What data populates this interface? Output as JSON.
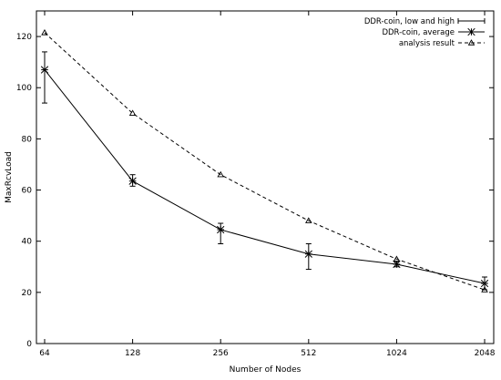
{
  "chart_data": {
    "type": "line",
    "xlabel": "Number of Nodes",
    "ylabel": "MaxRcvLoad",
    "x_scale": "log2",
    "x_ticks": [
      "64",
      "128",
      "256",
      "512",
      "1024",
      "2048"
    ],
    "xlim": [
      60,
      2200
    ],
    "ylim": [
      0,
      130
    ],
    "y_ticks": [
      "0",
      "20",
      "40",
      "60",
      "80",
      "100",
      "120"
    ],
    "grid": false,
    "legend_position": "top-right",
    "series": [
      {
        "name": "DDR-coin, low and high",
        "style": "errorbar",
        "x": [
          64,
          128,
          256,
          512,
          1024,
          2048
        ],
        "low": [
          94,
          61.5,
          39,
          29,
          30,
          21
        ],
        "high": [
          114,
          66,
          47,
          39,
          32,
          26
        ]
      },
      {
        "name": "DDR-coin, average",
        "style": "solid-star",
        "x": [
          64,
          128,
          256,
          512,
          1024,
          2048
        ],
        "y": [
          107,
          63.5,
          44.5,
          35,
          31,
          23.5
        ]
      },
      {
        "name": "analysis result",
        "style": "dashed-triangle",
        "x": [
          64,
          128,
          256,
          512,
          1024,
          2048
        ],
        "y": [
          121.5,
          90,
          66,
          48,
          33,
          21
        ]
      }
    ]
  }
}
